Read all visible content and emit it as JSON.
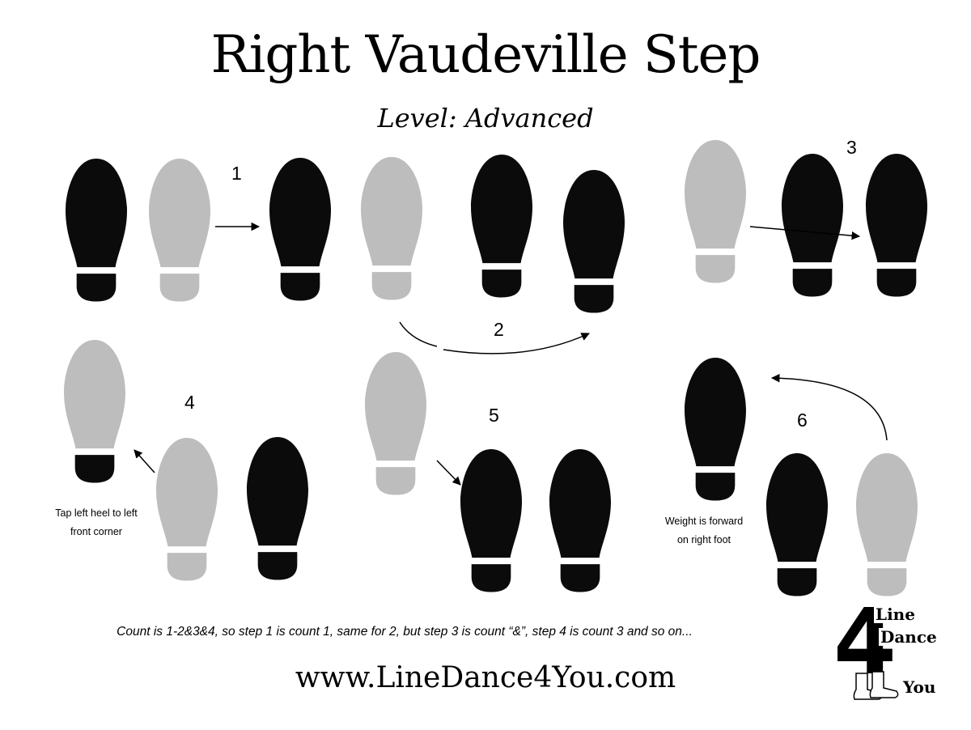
{
  "title": "Right Vaudeville Step",
  "subtitle": "Level: Advanced",
  "colors": {
    "dark_foot": "#0b0b0b",
    "light_foot": "#bdbdbd",
    "arrow": "#000000"
  },
  "steps": [
    {
      "number": "1"
    },
    {
      "number": "2"
    },
    {
      "number": "3"
    },
    {
      "number": "4",
      "note": [
        "Tap left heel to left",
        "front corner"
      ]
    },
    {
      "number": "5"
    },
    {
      "number": "6",
      "note": [
        "Weight is forward",
        "on right foot"
      ]
    }
  ],
  "count_text": "Count is 1-2&3&4, so step 1 is count 1, same for 2, but step 3 is count “&”, step 4 is count 3 and so on...",
  "website": "www.LineDance4You.com",
  "logo": {
    "numeral": "4",
    "line1": "Line",
    "line2": "Dance",
    "line3": "You"
  }
}
